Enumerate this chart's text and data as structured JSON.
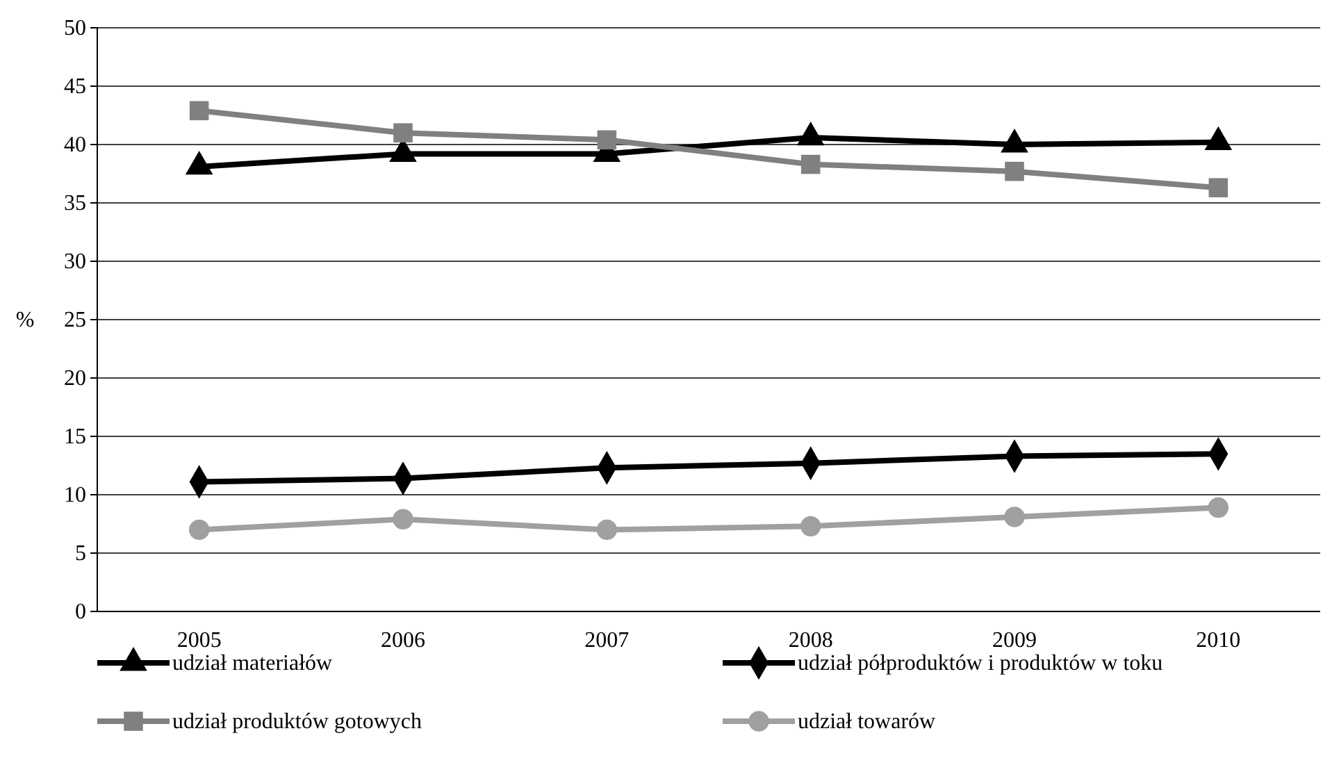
{
  "chart_data": {
    "type": "line",
    "ylabel": "%",
    "categories": [
      "2005",
      "2006",
      "2007",
      "2008",
      "2009",
      "2010"
    ],
    "series": [
      {
        "name": "udział materiałów",
        "color": "#000000",
        "marker": "triangle",
        "values": [
          38.1,
          39.2,
          39.2,
          40.6,
          40.0,
          40.2
        ]
      },
      {
        "name": "udział półproduktów i produktów w toku",
        "color": "#000000",
        "marker": "diamond",
        "values": [
          11.1,
          11.4,
          12.3,
          12.7,
          13.3,
          13.5
        ]
      },
      {
        "name": "udział produktów gotowych",
        "color": "#808080",
        "marker": "square",
        "values": [
          42.9,
          41.0,
          40.4,
          38.3,
          37.7,
          36.3
        ]
      },
      {
        "name": "udział towarów",
        "color": "#a0a0a0",
        "marker": "circle",
        "values": [
          7.0,
          7.9,
          7.0,
          7.3,
          8.1,
          8.9
        ]
      }
    ],
    "ylim": [
      0,
      50
    ],
    "yticks": [
      0,
      5,
      10,
      15,
      20,
      25,
      30,
      35,
      40,
      45,
      50
    ],
    "grid": "y",
    "legend": "bottom",
    "line_style": "solid"
  }
}
